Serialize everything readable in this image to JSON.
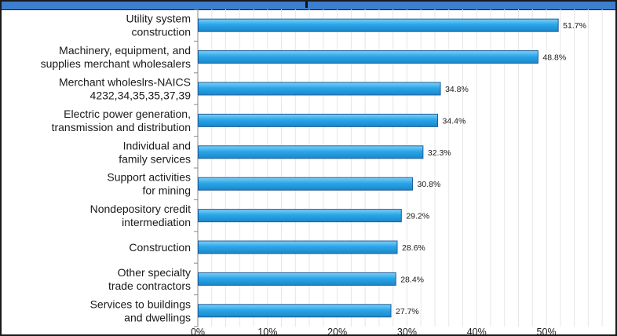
{
  "chart_data": {
    "type": "bar",
    "orientation": "horizontal",
    "categories": [
      [
        "Utility system",
        "construction"
      ],
      [
        "Machinery, equipment, and",
        "supplies merchant wholesalers"
      ],
      [
        "Merchant wholeslrs-NAICS",
        "4232,34,35,35,37,39"
      ],
      [
        "Electric power generation,",
        "transmission and distribution"
      ],
      [
        "Individual and",
        "family services"
      ],
      [
        "Support activities",
        "for mining"
      ],
      [
        "Nondepository credit",
        "intermediation"
      ],
      [
        "Construction"
      ],
      [
        "Other specialty",
        "trade contractors"
      ],
      [
        "Services to buildings",
        "and dwellings"
      ]
    ],
    "values": [
      51.7,
      48.8,
      34.8,
      34.4,
      32.3,
      30.8,
      29.2,
      28.6,
      28.4,
      27.7
    ],
    "value_labels": [
      "51.7%",
      "48.8%",
      "34.8%",
      "34.4%",
      "32.3%",
      "30.8%",
      "29.2%",
      "28.6%",
      "28.4%",
      "27.7%"
    ],
    "xlim": [
      0,
      59
    ],
    "x_ticks": [
      0,
      10,
      20,
      30,
      40,
      50
    ],
    "x_tick_labels": [
      "0%",
      "10%",
      "20%",
      "30%",
      "40%",
      "50%"
    ],
    "grid": "vertical-minor",
    "bar_color": "#2aa6e8",
    "bar_edge_color": "#1f5f9a"
  }
}
